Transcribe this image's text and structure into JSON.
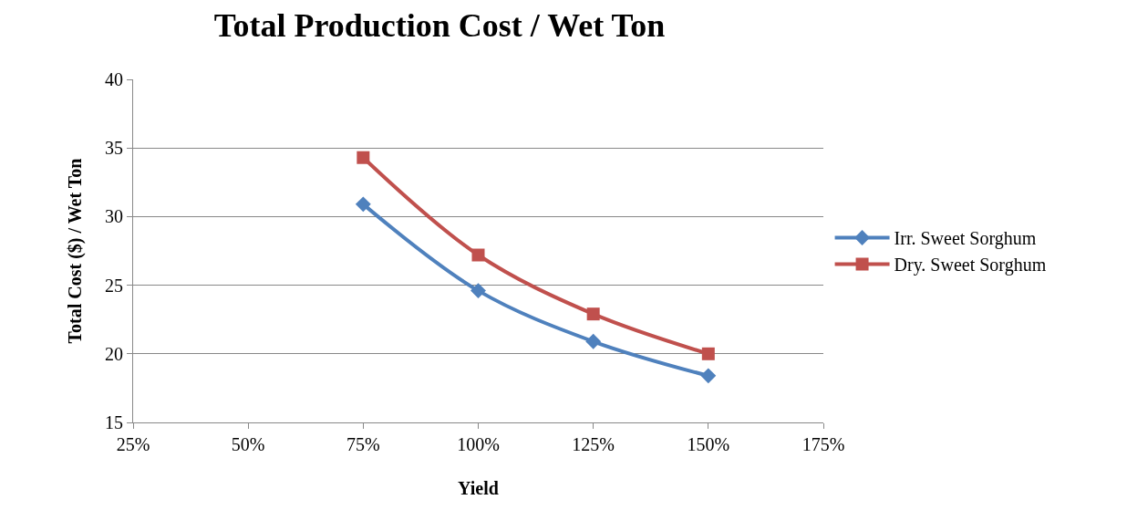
{
  "chart_data": {
    "type": "line",
    "title": "Total Production Cost / Wet Ton",
    "xlabel": "Yield",
    "ylabel": "Total Cost ($) / Wet Ton",
    "x": [
      0.75,
      1.0,
      1.25,
      1.5
    ],
    "series": [
      {
        "name": "Irr. Sweet Sorghum",
        "color": "#4f81bd",
        "marker": "diamond",
        "values": [
          30.9,
          24.6,
          20.9,
          18.4
        ]
      },
      {
        "name": "Dry. Sweet Sorghum",
        "color": "#c0504d",
        "marker": "square",
        "values": [
          34.3,
          27.2,
          22.9,
          20.0
        ]
      }
    ],
    "xlim": [
      0.25,
      1.75
    ],
    "xticks": [
      {
        "value": 0.25,
        "label": "25%"
      },
      {
        "value": 0.5,
        "label": "50%"
      },
      {
        "value": 0.75,
        "label": "75%"
      },
      {
        "value": 1.0,
        "label": "100%"
      },
      {
        "value": 1.25,
        "label": "125%"
      },
      {
        "value": 1.5,
        "label": "150%"
      },
      {
        "value": 1.75,
        "label": "175%"
      }
    ],
    "ylim": [
      15,
      40
    ],
    "yticks": [
      15,
      20,
      25,
      30,
      35,
      40
    ],
    "grid": "y",
    "legend": "right",
    "line_style": "solid"
  }
}
